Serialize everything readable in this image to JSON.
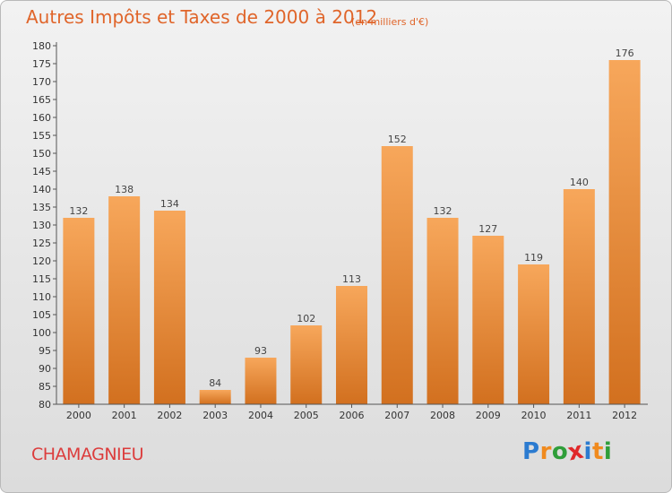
{
  "header": {
    "title": "Autres Impôts et Taxes de 2000 à 2012",
    "subtitle": "(en milliers d'€)"
  },
  "footer": {
    "city": "CHAMAGNIEU",
    "logo": {
      "letters": [
        "P",
        "r",
        "o",
        "x",
        "i",
        "t",
        "i"
      ],
      "colors": [
        "#2b7bd0",
        "#f08a1e",
        "#2f9e3a",
        "#e0282a",
        "#2b7bd0",
        "#f08a1e",
        "#2f9e3a"
      ]
    }
  },
  "colors": {
    "bar_top": "#f7a75b",
    "bar_bottom": "#d2701f",
    "title": "#e0652a",
    "city": "#dc3c3c"
  },
  "chart_data": {
    "type": "bar",
    "categories": [
      "2000",
      "2001",
      "2002",
      "2003",
      "2004",
      "2005",
      "2006",
      "2007",
      "2008",
      "2009",
      "2010",
      "2011",
      "2012"
    ],
    "values": [
      132,
      138,
      134,
      84,
      93,
      102,
      113,
      152,
      132,
      127,
      119,
      140,
      176
    ],
    "ylim": [
      80,
      180
    ],
    "yticks": [
      80,
      85,
      90,
      95,
      100,
      105,
      110,
      115,
      120,
      125,
      130,
      135,
      140,
      145,
      150,
      155,
      160,
      165,
      170,
      175,
      180
    ],
    "grid": false
  }
}
